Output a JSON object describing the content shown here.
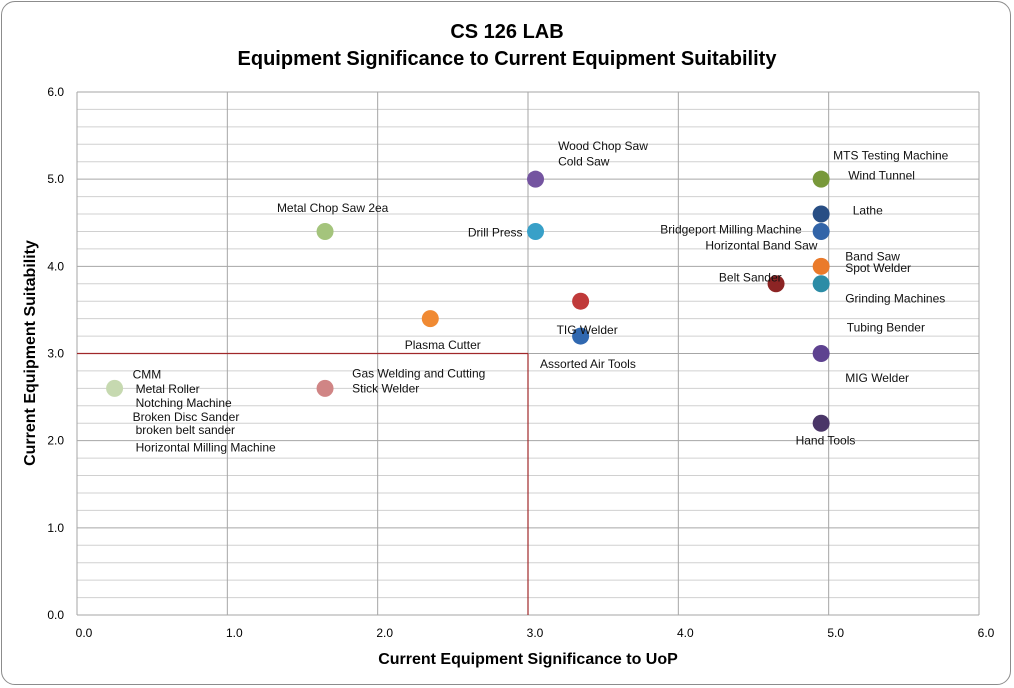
{
  "chart_data": {
    "type": "scatter",
    "title": "CS 126 LAB",
    "subtitle": "Equipment Significance to Current Equipment Suitability",
    "xlabel": "Current Equipment Significance to UoP",
    "ylabel": "Current Equipment Suitability",
    "xlim": [
      0,
      6
    ],
    "ylim": [
      0,
      6
    ],
    "x_ticks": [
      "0.0",
      "1.0",
      "2.0",
      "3.0",
      "4.0",
      "5.0",
      "6.0"
    ],
    "y_ticks": [
      "0.0",
      "1.0",
      "2.0",
      "3.0",
      "4.0",
      "5.0",
      "6.0"
    ],
    "grid": true,
    "reference_lines": {
      "x": 3.0,
      "y": 3.0,
      "color": "#a0282a"
    },
    "points": [
      {
        "x": 0.25,
        "y": 2.6,
        "color": "#c6d9b0"
      },
      {
        "x": 1.65,
        "y": 4.4,
        "color": "#a4c47c"
      },
      {
        "x": 1.65,
        "y": 2.6,
        "color": "#d08585"
      },
      {
        "x": 2.35,
        "y": 3.4,
        "color": "#f08a33"
      },
      {
        "x": 3.05,
        "y": 5.0,
        "color": "#7454a0"
      },
      {
        "x": 3.05,
        "y": 4.4,
        "color": "#38a0c8"
      },
      {
        "x": 3.35,
        "y": 3.6,
        "color": "#c03a3a"
      },
      {
        "x": 3.35,
        "y": 3.2,
        "color": "#3068b0"
      },
      {
        "x": 4.65,
        "y": 3.8,
        "color": "#8c2424"
      },
      {
        "x": 4.95,
        "y": 5.0,
        "color": "#78983a"
      },
      {
        "x": 4.95,
        "y": 4.6,
        "color": "#284e84"
      },
      {
        "x": 4.95,
        "y": 4.4,
        "color": "#3264a8"
      },
      {
        "x": 4.95,
        "y": 4.0,
        "color": "#ea7a2a"
      },
      {
        "x": 4.95,
        "y": 3.8,
        "color": "#2c8ca6"
      },
      {
        "x": 4.95,
        "y": 3.0,
        "color": "#5e4290"
      },
      {
        "x": 4.95,
        "y": 2.2,
        "color": "#4a3668"
      }
    ],
    "labels": [
      {
        "text": "CMM",
        "x": 0.37,
        "y": 2.76
      },
      {
        "text": "Metal Roller",
        "x": 0.39,
        "y": 2.59
      },
      {
        "text": "Notching Machine",
        "x": 0.39,
        "y": 2.43
      },
      {
        "text": "Broken Disc Sander",
        "x": 0.37,
        "y": 2.27
      },
      {
        "text": "broken belt sander",
        "x": 0.39,
        "y": 2.12
      },
      {
        "text": "Horizontal Milling Machine",
        "x": 0.39,
        "y": 1.92
      },
      {
        "text": "Metal Chop Saw 2ea",
        "x": 1.33,
        "y": 4.67
      },
      {
        "text": "Gas Welding and Cutting",
        "x": 1.83,
        "y": 2.77
      },
      {
        "text": "Stick Welder",
        "x": 1.83,
        "y": 2.6
      },
      {
        "text": "Plasma Cutter",
        "x": 2.18,
        "y": 3.1
      },
      {
        "text": "Wood Chop Saw",
        "x": 3.2,
        "y": 5.38
      },
      {
        "text": "Cold Saw",
        "x": 3.2,
        "y": 5.2
      },
      {
        "text": "Drill Press",
        "x": 2.6,
        "y": 4.39
      },
      {
        "text": "TIG Welder",
        "x": 3.19,
        "y": 3.27
      },
      {
        "text": "Assorted Air Tools",
        "x": 3.08,
        "y": 2.88
      },
      {
        "text": "MTS Testing Machine",
        "x": 5.03,
        "y": 5.27
      },
      {
        "text": "Wind Tunnel",
        "x": 5.13,
        "y": 5.04
      },
      {
        "text": "Lathe",
        "x": 5.16,
        "y": 4.64
      },
      {
        "text": "Bridgeport Milling Machine",
        "x": 3.88,
        "y": 4.42
      },
      {
        "text": "Horizontal Band Saw",
        "x": 4.18,
        "y": 4.24
      },
      {
        "text": "Band Saw",
        "x": 5.11,
        "y": 4.11
      },
      {
        "text": "Spot Welder",
        "x": 5.11,
        "y": 3.98
      },
      {
        "text": "Belt Sander",
        "x": 4.27,
        "y": 3.87
      },
      {
        "text": "Grinding Machines",
        "x": 5.11,
        "y": 3.63
      },
      {
        "text": "Tubing Bender",
        "x": 5.12,
        "y": 3.3
      },
      {
        "text": "MIG Welder",
        "x": 5.11,
        "y": 2.72
      },
      {
        "text": "Hand Tools",
        "x": 4.78,
        "y": 2.0
      }
    ]
  }
}
